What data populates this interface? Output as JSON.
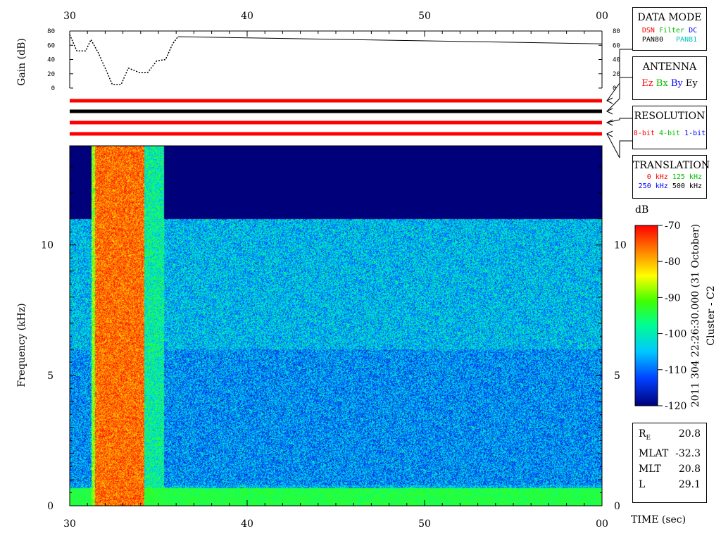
{
  "chart_data": {
    "type": "heatmap",
    "time_axis": {
      "ticks": [
        "30",
        "40",
        "50",
        "00"
      ],
      "tick_values": [
        30,
        40,
        50,
        60
      ],
      "range": [
        30,
        60
      ],
      "label": "TIME (sec)"
    },
    "frequency_axis": {
      "label": "Frequency (kHz)",
      "range": [
        0,
        13.8
      ],
      "ticks": [
        0,
        5,
        10
      ]
    },
    "gain_panel": {
      "ylabel": "Gain (dB)",
      "ticks": [
        0,
        20,
        40,
        60,
        80
      ],
      "range": [
        0,
        80
      ],
      "profile": [
        {
          "t": 30.0,
          "gain": 75
        },
        {
          "t": 30.4,
          "gain": 52
        },
        {
          "t": 30.9,
          "gain": 52
        },
        {
          "t": 31.2,
          "gain": 68
        },
        {
          "t": 31.6,
          "gain": 50
        },
        {
          "t": 32.0,
          "gain": 28
        },
        {
          "t": 32.4,
          "gain": 5
        },
        {
          "t": 32.9,
          "gain": 5
        },
        {
          "t": 33.3,
          "gain": 28
        },
        {
          "t": 33.9,
          "gain": 22
        },
        {
          "t": 34.4,
          "gain": 22
        },
        {
          "t": 34.9,
          "gain": 38
        },
        {
          "t": 35.4,
          "gain": 40
        },
        {
          "t": 35.8,
          "gain": 62
        },
        {
          "t": 36.1,
          "gain": 72
        },
        {
          "t": 60.0,
          "gain": 62
        }
      ]
    },
    "mode_bars": [
      {
        "color": "#ff0000"
      },
      {
        "color": "#000000"
      },
      {
        "color": "#ff0000"
      },
      {
        "color": "#ff0000"
      }
    ],
    "colorbar": {
      "unit": "dB",
      "min": -120,
      "max": -70,
      "ticks": [
        -70,
        -80,
        -90,
        -100,
        -110,
        -120
      ]
    },
    "spectrogram": {
      "description_features": [
        {
          "type": "intense_band",
          "t_start": 31.4,
          "t_end": 34.2,
          "f_max": 13.8,
          "level_db": -70
        },
        {
          "type": "low_freq_band",
          "f_start": 0,
          "f_end": 0.7,
          "level_db": -92
        },
        {
          "type": "data_cutoff",
          "t_after": 35.3,
          "f_max": 11.0
        }
      ]
    }
  },
  "data_mode": {
    "title": "DATA MODE",
    "items": [
      {
        "label": "DSN",
        "color": "#ff0000"
      },
      {
        "label": "Filter",
        "color": "#00c000"
      },
      {
        "label": "DC",
        "color": "#0000ff"
      },
      {
        "label": "PAN80",
        "color": "#000000"
      },
      {
        "label": "PAN81",
        "color": "#00c0c0"
      }
    ]
  },
  "antenna": {
    "title": "ANTENNA",
    "items": [
      {
        "label": "Ez",
        "color": "#ff0000"
      },
      {
        "label": "Bx",
        "color": "#00c000"
      },
      {
        "label": "By",
        "color": "#0000ff"
      },
      {
        "label": "Ey",
        "color": "#000000"
      }
    ]
  },
  "resolution": {
    "title": "RESOLUTION",
    "items": [
      {
        "label": "8-bit",
        "color": "#ff0000"
      },
      {
        "label": "4-bit",
        "color": "#00c000"
      },
      {
        "label": "1-bit",
        "color": "#0000ff"
      }
    ]
  },
  "translation": {
    "title": "TRANSLATION",
    "items": [
      {
        "label": "0 kHz",
        "color": "#ff0000"
      },
      {
        "label": "125 kHz",
        "color": "#00c000"
      },
      {
        "label": "250 kHz",
        "color": "#0000ff"
      },
      {
        "label": "500 kHz",
        "color": "#000000"
      }
    ]
  },
  "vertical_caption": {
    "line1": "2011 304 22:26:30.000 (31 October)",
    "line2": "Cluster - C2"
  },
  "position": [
    {
      "label": "R",
      "sub": "E",
      "value": "20.8"
    },
    {
      "label": "MLAT",
      "sub": "",
      "value": "-32.3"
    },
    {
      "label": "MLT",
      "sub": "",
      "value": "20.8"
    },
    {
      "label": "L",
      "sub": "",
      "value": "29.1"
    }
  ]
}
